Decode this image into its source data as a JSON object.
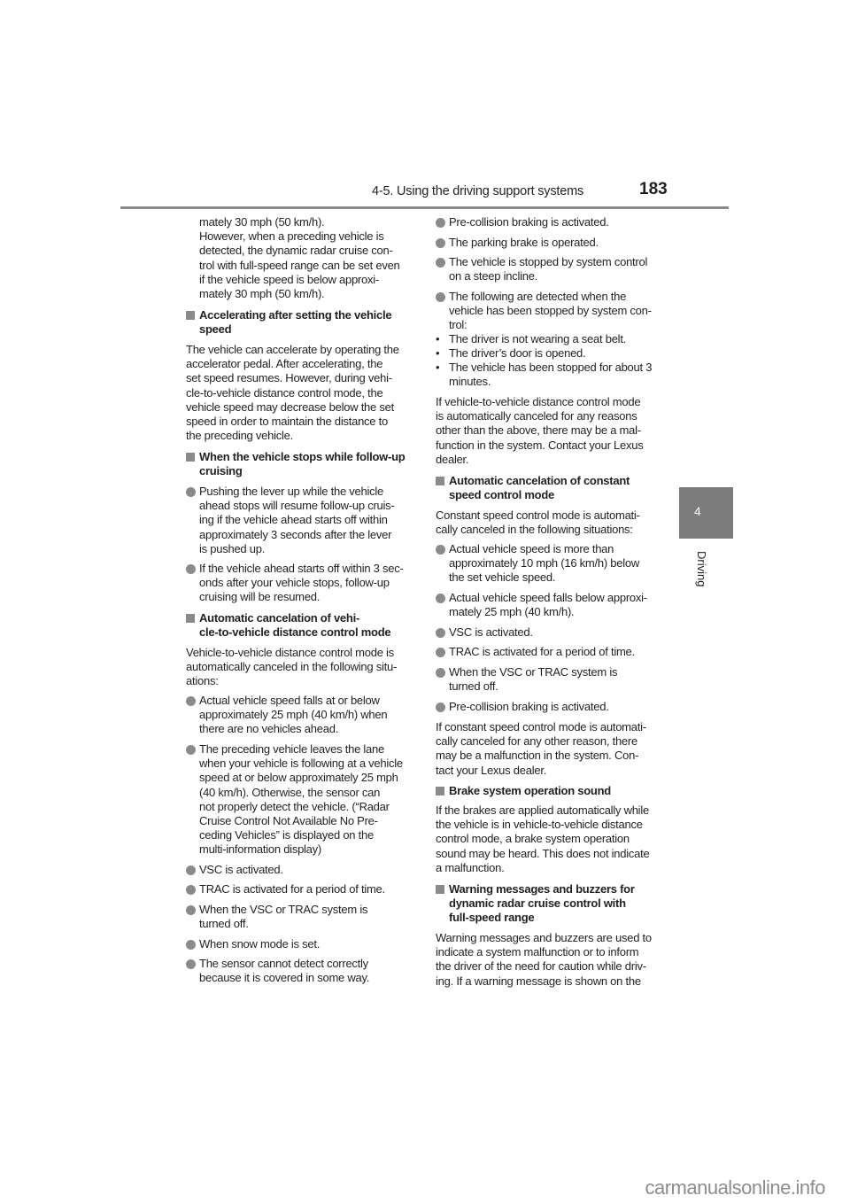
{
  "header": {
    "section": "4-5. Using the driving support systems",
    "page_number": "183"
  },
  "side_tab": {
    "chapter": "4",
    "label": "Driving"
  },
  "watermark": "carmanualsonline.info",
  "left_column": [
    {
      "type": "cont",
      "lines": [
        "mately 30 mph (50 km/h).",
        "However, when a preceding vehicle is",
        "detected, the dynamic radar cruise con-",
        "trol with full-speed range can be set even",
        "if the vehicle speed is below approxi-",
        "mately 30 mph (50 km/h)."
      ]
    },
    {
      "type": "heading",
      "lines": [
        "Accelerating after setting the vehicle",
        "speed"
      ]
    },
    {
      "type": "para",
      "lines": [
        "The vehicle can accelerate by operating the",
        "accelerator pedal. After accelerating, the",
        "set speed resumes. However, during vehi-",
        "cle-to-vehicle distance control mode, the",
        "vehicle speed may decrease below the set",
        "speed in order to maintain the distance to",
        "the preceding vehicle."
      ]
    },
    {
      "type": "heading",
      "lines": [
        "When the vehicle stops while follow-up",
        "cruising"
      ]
    },
    {
      "type": "bullet",
      "lines": [
        "Pushing the lever up while the vehicle",
        "ahead stops will resume follow-up cruis-",
        "ing if the vehicle ahead starts off within",
        "approximately 3 seconds after the lever",
        "is pushed up."
      ]
    },
    {
      "type": "bullet",
      "lines": [
        "If the vehicle ahead starts off within 3 sec-",
        "onds after your vehicle stops, follow-up",
        "cruising will be resumed."
      ]
    },
    {
      "type": "heading",
      "lines": [
        "Automatic cancelation of vehi-",
        "cle-to-vehicle distance control mode"
      ]
    },
    {
      "type": "para",
      "lines": [
        "Vehicle-to-vehicle distance control mode is",
        "automatically canceled in the following situ-",
        "ations:"
      ]
    },
    {
      "type": "bullet",
      "lines": [
        "Actual vehicle speed falls at or below",
        "approximately 25 mph (40 km/h) when",
        "there are no vehicles ahead."
      ]
    },
    {
      "type": "bullet",
      "lines": [
        "The preceding vehicle leaves the lane",
        "when your vehicle is following at a vehicle",
        "speed at or below approximately 25 mph",
        "(40 km/h). Otherwise, the sensor can",
        "not properly detect the vehicle. (“Radar",
        "Cruise Control Not Available No Pre-",
        "ceding Vehicles” is displayed on the",
        "multi-information display)"
      ]
    },
    {
      "type": "bullet",
      "lines": [
        "VSC is activated."
      ]
    },
    {
      "type": "bullet",
      "lines": [
        "TRAC is activated for a period of time."
      ]
    },
    {
      "type": "bullet",
      "lines": [
        "When the VSC or TRAC system is",
        "turned off."
      ]
    },
    {
      "type": "bullet",
      "lines": [
        "When snow mode is set."
      ]
    },
    {
      "type": "bullet",
      "lines": [
        "The sensor cannot detect correctly",
        "because it is covered in some way."
      ]
    }
  ],
  "right_column": [
    {
      "type": "bullet",
      "lines": [
        "Pre-collision braking is activated."
      ]
    },
    {
      "type": "bullet",
      "lines": [
        "The parking brake is operated."
      ]
    },
    {
      "type": "bullet",
      "lines": [
        "The vehicle is stopped by system control",
        "on a steep incline."
      ]
    },
    {
      "type": "bullet",
      "lines": [
        "The following are detected when the",
        "vehicle has been stopped by system con-",
        "trol:"
      ]
    },
    {
      "type": "dash",
      "lines": [
        "The driver is not wearing a seat belt."
      ]
    },
    {
      "type": "dash",
      "lines": [
        "The driver’s door is opened."
      ]
    },
    {
      "type": "dash",
      "lines": [
        "The vehicle has been stopped for about 3",
        "minutes."
      ]
    },
    {
      "type": "para",
      "lines": [
        "If vehicle-to-vehicle distance control mode",
        "is automatically canceled for any reasons",
        "other than the above, there may be a mal-",
        "function in the system. Contact your Lexus",
        "dealer."
      ]
    },
    {
      "type": "heading",
      "lines": [
        "Automatic cancelation of constant",
        "speed control mode"
      ]
    },
    {
      "type": "para",
      "lines": [
        "Constant speed control mode is automati-",
        "cally canceled in the following situations:"
      ]
    },
    {
      "type": "bullet",
      "lines": [
        "Actual vehicle speed is more than",
        "approximately 10 mph (16 km/h) below",
        "the set vehicle speed."
      ]
    },
    {
      "type": "bullet",
      "lines": [
        "Actual vehicle speed falls below approxi-",
        "mately 25 mph (40 km/h)."
      ]
    },
    {
      "type": "bullet",
      "lines": [
        "VSC is activated."
      ]
    },
    {
      "type": "bullet",
      "lines": [
        "TRAC is activated for a period of time."
      ]
    },
    {
      "type": "bullet",
      "lines": [
        "When the VSC or TRAC system is",
        "turned off."
      ]
    },
    {
      "type": "bullet",
      "lines": [
        "Pre-collision braking is activated."
      ]
    },
    {
      "type": "para",
      "lines": [
        "If constant speed control mode is automati-",
        "cally canceled for any other reason, there",
        "may be a malfunction in the system. Con-",
        "tact your Lexus dealer."
      ]
    },
    {
      "type": "heading",
      "lines": [
        "Brake system operation sound"
      ]
    },
    {
      "type": "para",
      "lines": [
        "If the brakes are applied automatically while",
        "the vehicle is in vehicle-to-vehicle distance",
        "control mode, a brake system operation",
        "sound may be heard. This does not indicate",
        "a malfunction."
      ]
    },
    {
      "type": "heading",
      "lines": [
        "Warning messages and buzzers for",
        "dynamic radar cruise control with",
        "full-speed range"
      ]
    },
    {
      "type": "para",
      "lines": [
        "Warning messages and buzzers are used to",
        "indicate a system malfunction or to inform",
        "the driver of the need for caution while driv-",
        "ing. If a warning message is shown on the"
      ]
    }
  ]
}
